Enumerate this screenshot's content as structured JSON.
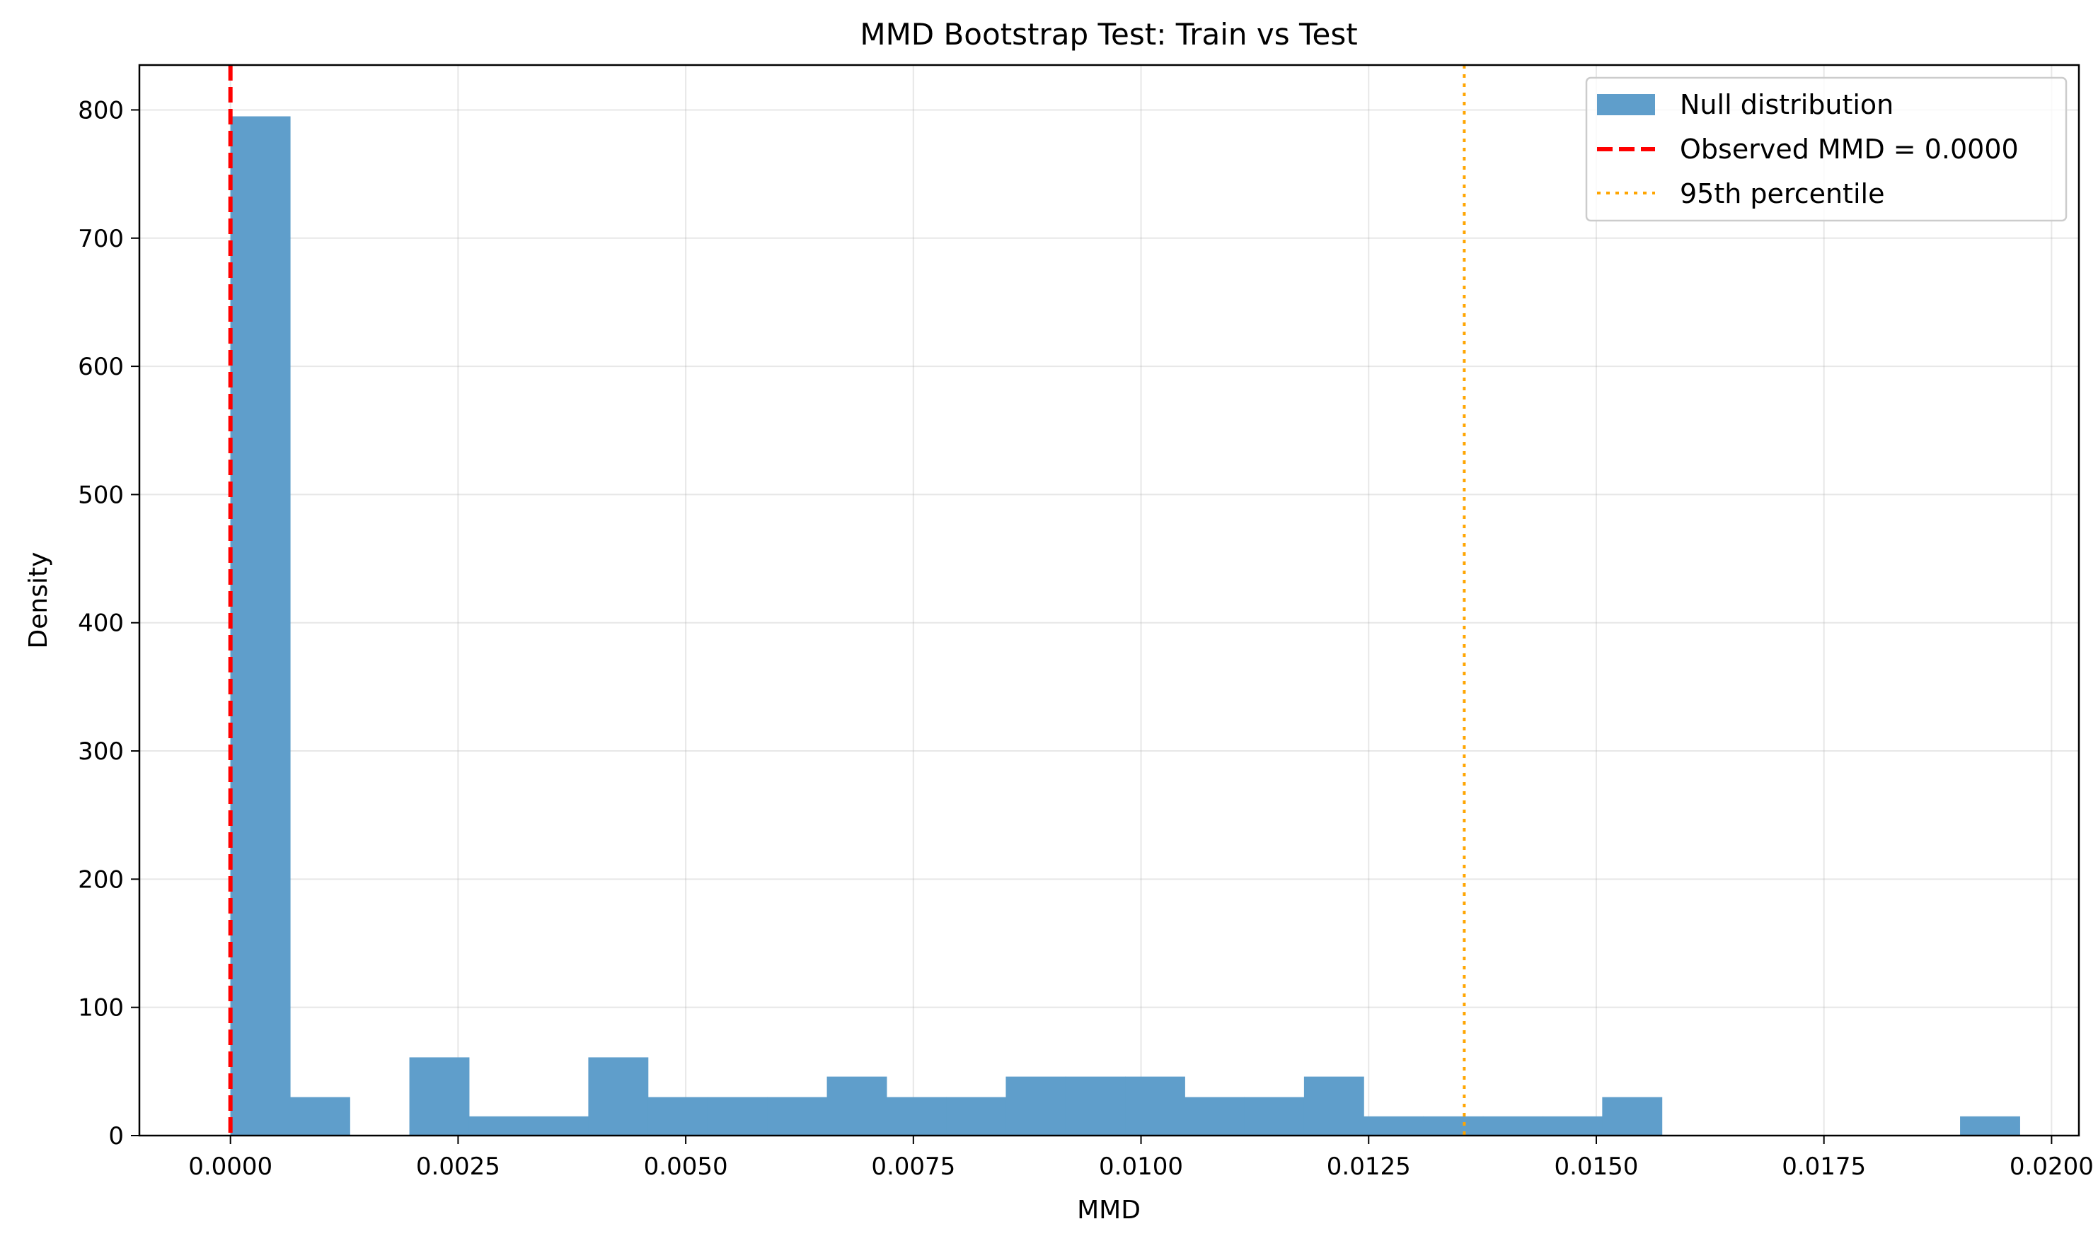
{
  "chart_data": {
    "type": "bar",
    "title": "MMD Bootstrap Test: Train vs Test",
    "xlabel": "MMD",
    "ylabel": "Density",
    "xlim": [
      -0.001,
      0.0203
    ],
    "ylim": [
      0,
      835
    ],
    "xticks": [
      0.0,
      0.0025,
      0.005,
      0.0075,
      0.01,
      0.0125,
      0.015,
      0.0175,
      0.02
    ],
    "xtick_labels": [
      "0.0000",
      "0.0025",
      "0.0050",
      "0.0075",
      "0.0100",
      "0.0125",
      "0.0150",
      "0.0175",
      "0.0200"
    ],
    "yticks": [
      0,
      100,
      200,
      300,
      400,
      500,
      600,
      700,
      800
    ],
    "ytick_labels": [
      "0",
      "100",
      "200",
      "300",
      "400",
      "500",
      "600",
      "700",
      "800"
    ],
    "grid": true,
    "legend_position": "top-right",
    "bin_edges": [
      0.0,
      0.000655,
      0.00131,
      0.001965,
      0.00262,
      0.003275,
      0.00393,
      0.004585,
      0.00524,
      0.005895,
      0.00655,
      0.007205,
      0.00786,
      0.008515,
      0.00917,
      0.009825,
      0.01048,
      0.011135,
      0.01179,
      0.012445,
      0.0131,
      0.013755,
      0.01441,
      0.015065,
      0.01572,
      0.016375,
      0.01703,
      0.017685,
      0.01834,
      0.018995,
      0.01965
    ],
    "series": [
      {
        "name": "Null distribution",
        "type": "histogram",
        "color": "#5f9ecb",
        "values": [
          795,
          30,
          0,
          61,
          15,
          15,
          61,
          30,
          30,
          30,
          46,
          30,
          30,
          46,
          46,
          46,
          30,
          30,
          46,
          15,
          15,
          15,
          15,
          30,
          0,
          0,
          0,
          0,
          0,
          15
        ]
      },
      {
        "name": "Observed MMD = 0.0000",
        "type": "vline",
        "x": 0.0,
        "color": "#ff0000",
        "style": "dashed"
      },
      {
        "name": "95th percentile",
        "type": "vline",
        "x": 0.01355,
        "color": "#ffa500",
        "style": "dotted"
      }
    ]
  }
}
